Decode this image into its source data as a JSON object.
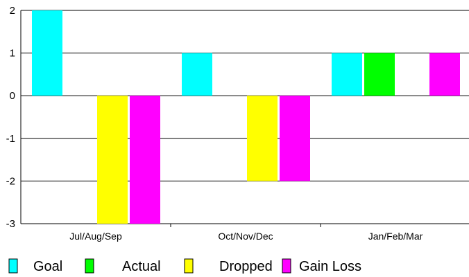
{
  "chart_data": {
    "type": "bar",
    "categories": [
      "Jul/Aug/Sep",
      "Oct/Nov/Dec",
      "Jan/Feb/Mar"
    ],
    "series": [
      {
        "name": "Goal",
        "color": "#00ffff",
        "values": [
          2,
          1,
          1
        ]
      },
      {
        "name": "Actual",
        "color": "#00ff00",
        "values": [
          0,
          0,
          1
        ]
      },
      {
        "name": "Dropped",
        "color": "#ffff00",
        "values": [
          -3,
          -2,
          0
        ]
      },
      {
        "name": "Gain Loss",
        "color": "#ff00ff",
        "values": [
          -3,
          -2,
          1
        ]
      }
    ],
    "ylim": [
      -3,
      2
    ],
    "yticks": [
      2,
      1,
      0,
      -1,
      -2,
      -3
    ],
    "grid": true,
    "legend": "bottom",
    "title": "",
    "xlabel": "",
    "ylabel": ""
  }
}
